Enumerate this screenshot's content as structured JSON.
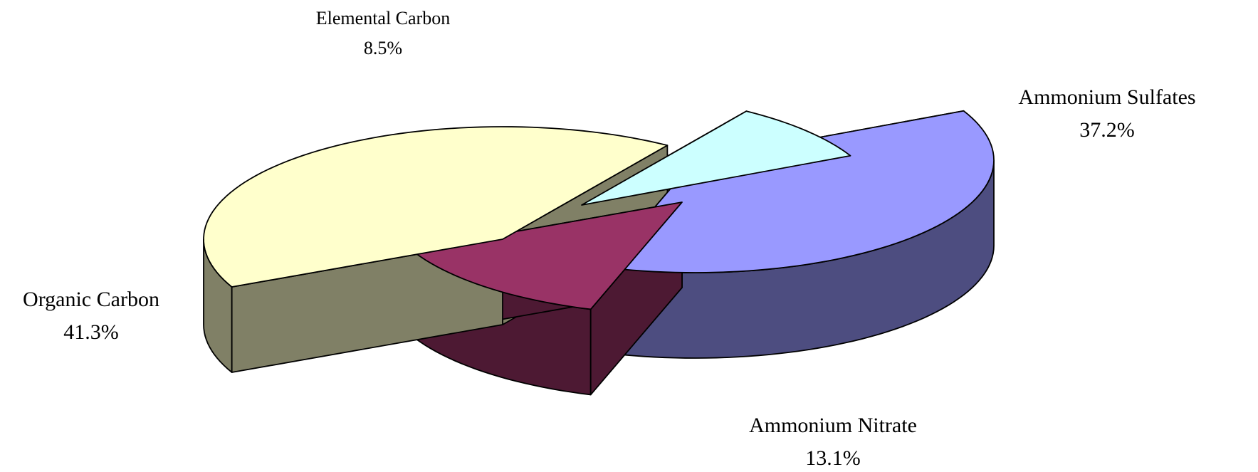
{
  "chart_data": {
    "type": "pie",
    "title": "",
    "slices": [
      {
        "name": "Ammonium Sulfates",
        "value": 37.2,
        "value_label": "37.2%",
        "top_color": "#9999ff",
        "side_color": "#4d4d80"
      },
      {
        "name": "Ammonium Nitrate",
        "value": 13.1,
        "value_label": "13.1%",
        "top_color": "#993366",
        "side_color": "#4d1933"
      },
      {
        "name": "Organic Carbon",
        "value": 41.3,
        "value_label": "41.3%",
        "top_color": "#ffffcc",
        "side_color": "#808066"
      },
      {
        "name": "Elemental Carbon",
        "value": 8.5,
        "value_label": "8.5%",
        "top_color": "#ccffff",
        "side_color": "#668080"
      }
    ],
    "style": "exploded 3D pie"
  }
}
